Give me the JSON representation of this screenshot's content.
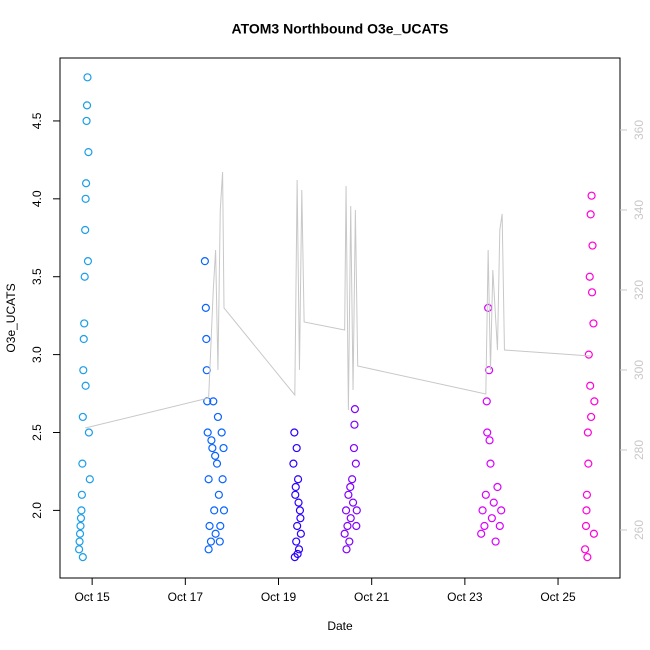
{
  "chart_data": {
    "type": "scatter",
    "title": "ATOM3 Northbound O3e_UCATS",
    "xlabel": "Date",
    "ylabel": "O3e_UCATS",
    "xlim": [
      14.31,
      26.33
    ],
    "xticks": [
      {
        "value": 15,
        "label": "Oct 15"
      },
      {
        "value": 17,
        "label": "Oct 17"
      },
      {
        "value": 19,
        "label": "Oct 19"
      },
      {
        "value": 21,
        "label": "Oct 21"
      },
      {
        "value": 23,
        "label": "Oct 23"
      },
      {
        "value": 25,
        "label": "Oct 25"
      }
    ],
    "ylim": [
      1.566,
      4.904
    ],
    "yticks": [
      {
        "value": 2,
        "label": "2.0"
      },
      2.5,
      {
        "value": 3,
        "label": "3.0"
      },
      3.5,
      {
        "value": 4,
        "label": "4.0"
      },
      4.5
    ],
    "y2lim": [
      248,
      378
    ],
    "y2ticks": [
      260,
      280,
      300,
      320,
      340,
      360
    ],
    "y2color": "#c8c8c8",
    "series": [
      {
        "color": "#1a9ee8",
        "x": [
          14.72,
          14.74,
          14.76,
          14.78,
          14.8,
          14.82,
          14.84,
          14.86,
          14.88,
          14.9,
          14.92,
          14.73,
          14.77,
          14.81,
          14.85,
          14.89,
          14.93,
          14.75,
          14.79,
          14.83,
          14.87,
          14.91,
          14.95,
          14.8,
          14.86
        ],
        "values": [
          1.75,
          1.85,
          1.95,
          2.1,
          2.6,
          3.1,
          3.5,
          4.0,
          4.5,
          4.78,
          4.3,
          1.8,
          2.0,
          2.9,
          3.8,
          4.6,
          2.5,
          1.9,
          2.3,
          3.2,
          4.1,
          3.6,
          2.2,
          1.7,
          2.8
        ]
      },
      {
        "color": "#0a64ff",
        "x": [
          17.42,
          17.44,
          17.46,
          17.48,
          17.5,
          17.52,
          17.55,
          17.58,
          17.6,
          17.62,
          17.65,
          17.68,
          17.7,
          17.72,
          17.75,
          17.78,
          17.8,
          17.83,
          17.45,
          17.47,
          17.5,
          17.56,
          17.64,
          17.74,
          17.82
        ],
        "values": [
          3.6,
          3.3,
          2.9,
          2.5,
          2.2,
          1.9,
          1.8,
          2.4,
          2.7,
          2.0,
          1.85,
          2.3,
          2.6,
          2.1,
          1.9,
          2.5,
          2.2,
          2.0,
          3.1,
          2.7,
          1.75,
          2.45,
          2.35,
          1.8,
          2.4
        ]
      },
      {
        "color": "#2a00ff",
        "x": [
          19.32,
          19.34,
          19.36,
          19.38,
          19.4,
          19.42,
          19.44,
          19.46,
          19.48,
          19.35,
          19.39,
          19.43,
          19.47,
          19.37,
          19.41
        ],
        "values": [
          2.3,
          2.5,
          2.1,
          1.8,
          1.9,
          2.2,
          1.75,
          2.0,
          1.85,
          1.7,
          2.4,
          2.05,
          1.95,
          2.15,
          1.72
        ]
      },
      {
        "color": "#8000ff",
        "x": [
          20.42,
          20.45,
          20.48,
          20.5,
          20.52,
          20.55,
          20.58,
          20.6,
          20.62,
          20.64,
          20.66,
          20.68,
          20.46,
          20.54,
          20.63,
          20.67
        ],
        "values": [
          1.85,
          2.0,
          1.9,
          2.1,
          1.8,
          1.95,
          2.2,
          2.05,
          2.4,
          2.65,
          2.3,
          2.0,
          1.75,
          2.15,
          2.55,
          1.9
        ]
      },
      {
        "color": "#d800ff",
        "x": [
          23.35,
          23.38,
          23.42,
          23.45,
          23.48,
          23.5,
          23.52,
          23.55,
          23.58,
          23.62,
          23.66,
          23.7,
          23.75,
          23.78,
          23.47,
          23.53
        ],
        "values": [
          1.85,
          2.0,
          1.9,
          2.1,
          2.5,
          3.3,
          2.9,
          2.3,
          1.95,
          2.05,
          1.8,
          2.15,
          1.9,
          2.0,
          2.7,
          2.45
        ]
      },
      {
        "color": "#ff00d8",
        "x": [
          25.58,
          25.6,
          25.62,
          25.64,
          25.66,
          25.68,
          25.7,
          25.72,
          25.74,
          25.76,
          25.78,
          25.61,
          25.65,
          25.69,
          25.73,
          25.77,
          25.63,
          25.71
        ],
        "values": [
          1.75,
          1.9,
          2.1,
          2.5,
          3.0,
          3.5,
          3.9,
          4.02,
          3.7,
          3.2,
          2.7,
          2.0,
          2.3,
          2.8,
          3.4,
          1.85,
          1.7,
          2.6
        ]
      },
      {
        "type": "line",
        "axis": "y2",
        "color": "#c8c8c8",
        "x": [
          14.85,
          17.5,
          17.6,
          17.65,
          17.7,
          17.75,
          17.8,
          17.83,
          19.35,
          19.4,
          19.45,
          19.5,
          19.55,
          20.42,
          20.45,
          20.5,
          20.55,
          20.6,
          20.65,
          20.7,
          23.45,
          23.5,
          23.55,
          23.6,
          23.7,
          23.75,
          23.8,
          23.85,
          25.7
        ],
        "values": [
          285.5,
          293,
          320,
          330,
          300,
          340,
          349.5,
          315.5,
          293.75,
          347.5,
          300,
          345,
          312,
          310,
          346,
          290,
          341,
          295,
          340,
          301,
          294,
          330,
          300,
          325,
          305,
          335,
          339,
          305,
          303.5
        ]
      }
    ]
  }
}
